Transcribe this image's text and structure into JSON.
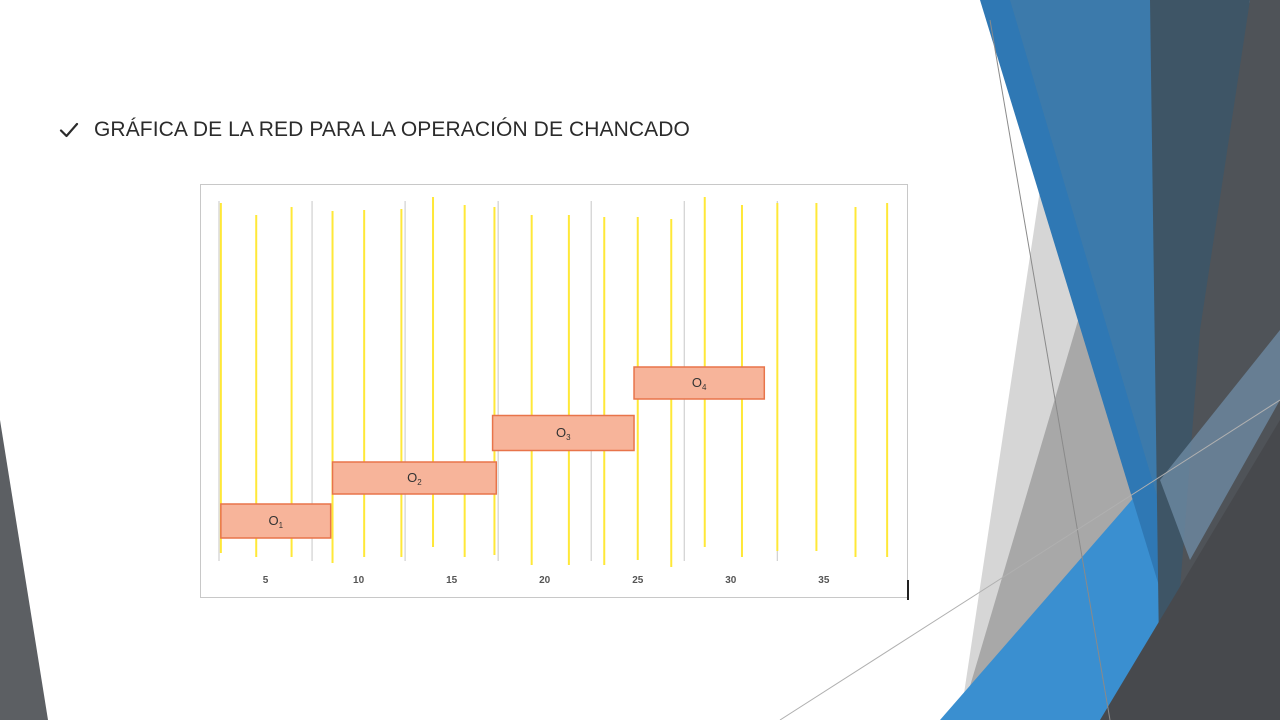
{
  "slide": {
    "title": "GRÁFICA DE LA RED PARA LA OPERACIÓN DE CHANCADO",
    "bullet_icon": "checkmark-icon",
    "theme_colors": {
      "blue_dark": "#1f5f96",
      "blue": "#2e7fc0",
      "blue_light": "#3c8fcf",
      "gray_dark": "#4a4f55",
      "gray_mid": "#9a9a9a",
      "gray_light": "#d5d5d5"
    }
  },
  "chart_data": {
    "type": "gantt",
    "title": "",
    "xlabel": "",
    "ylabel": "",
    "xlim": [
      2.5,
      38.5
    ],
    "x_ticks": [
      5,
      10,
      15,
      20,
      25,
      30,
      35
    ],
    "x_tick_labels": [
      "5",
      "10",
      "15",
      "20",
      "25",
      "30",
      "35"
    ],
    "gridlines_x": [
      2.5,
      7.5,
      12.5,
      17.5,
      22.5,
      27.5,
      32.5
    ],
    "bar_fill": "#f7b49a",
    "bar_border": "#e8744a",
    "tasks": [
      {
        "name": "O",
        "sub": "1",
        "start": 2.6,
        "end": 8.5,
        "row": 1
      },
      {
        "name": "O",
        "sub": "2",
        "start": 8.6,
        "end": 17.4,
        "row": 2
      },
      {
        "name": "O",
        "sub": "3",
        "start": 17.2,
        "end": 24.8,
        "row": 3
      },
      {
        "name": "O",
        "sub": "4",
        "start": 24.8,
        "end": 31.8,
        "row": 4
      }
    ],
    "marker_lines": {
      "color": "#ffe838",
      "x": [
        2.6,
        4.5,
        6.4,
        8.6,
        10.3,
        12.3,
        14.0,
        15.7,
        17.3,
        19.3,
        21.3,
        23.2,
        25.0,
        26.8,
        28.6,
        30.6,
        32.5,
        34.6,
        36.7,
        38.4
      ]
    }
  }
}
